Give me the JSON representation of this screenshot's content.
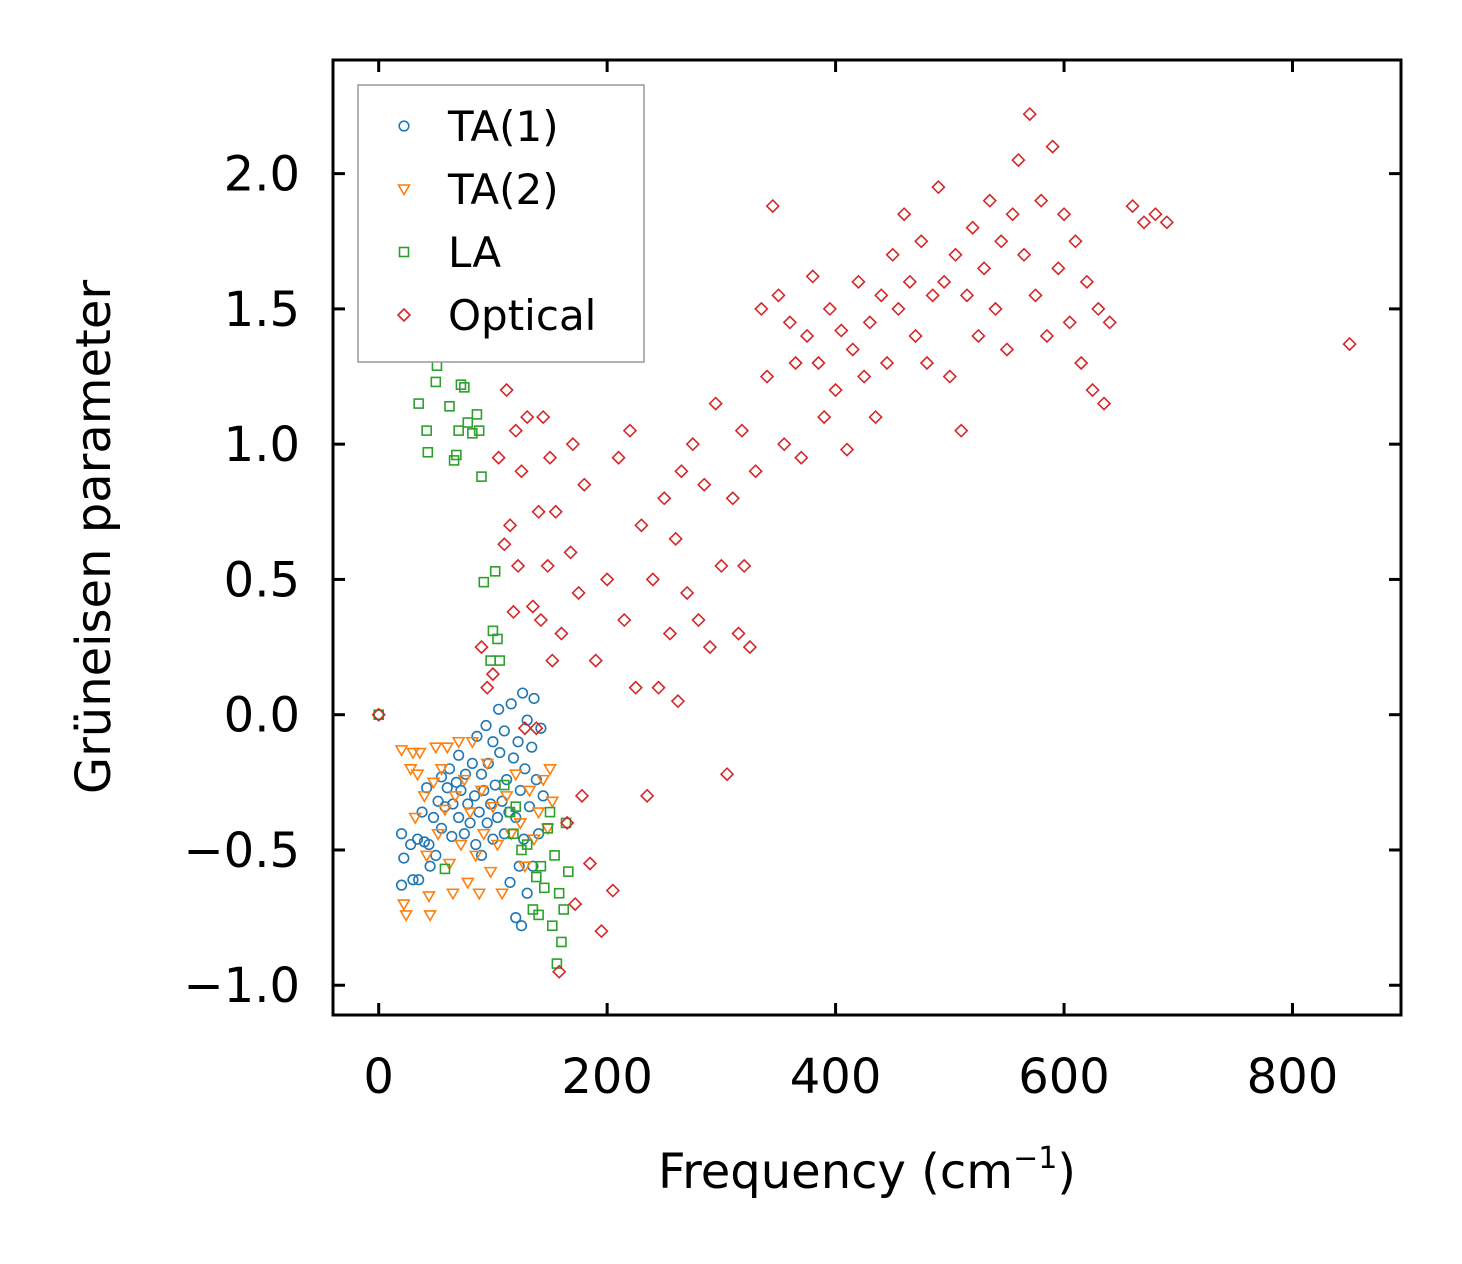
{
  "chart_data": {
    "type": "scatter",
    "title": "",
    "xlabel": "Frequency (cm",
    "xlabel_sup": "−1",
    "xlabel_close": ")",
    "ylabel": "Grüneisen parameter",
    "xlim": [
      -40,
      895
    ],
    "ylim": [
      -1.11,
      2.42
    ],
    "xticks": [
      0,
      200,
      400,
      600,
      800
    ],
    "xtick_labels": [
      "0",
      "200",
      "400",
      "600",
      "800"
    ],
    "yticks": [
      -1.0,
      -0.5,
      0.0,
      0.5,
      1.0,
      1.5,
      2.0
    ],
    "ytick_labels": [
      "−1.0",
      "−0.5",
      "0.0",
      "0.5",
      "1.0",
      "1.5",
      "2.0"
    ],
    "grid": false,
    "legend_position": "top-left",
    "series": [
      {
        "name": "TA(1)",
        "marker": "circle",
        "color": "#1f77b4",
        "points": [
          [
            0,
            0
          ],
          [
            20,
            -0.44
          ],
          [
            22,
            -0.53
          ],
          [
            20,
            -0.63
          ],
          [
            28,
            -0.48
          ],
          [
            30,
            -0.61
          ],
          [
            34,
            -0.46
          ],
          [
            35,
            -0.61
          ],
          [
            38,
            -0.36
          ],
          [
            40,
            -0.47
          ],
          [
            42,
            -0.27
          ],
          [
            44,
            -0.48
          ],
          [
            45,
            -0.56
          ],
          [
            48,
            -0.38
          ],
          [
            50,
            -0.52
          ],
          [
            52,
            -0.32
          ],
          [
            55,
            -0.23
          ],
          [
            55,
            -0.42
          ],
          [
            58,
            -0.34
          ],
          [
            60,
            -0.27
          ],
          [
            62,
            -0.2
          ],
          [
            64,
            -0.45
          ],
          [
            65,
            -0.33
          ],
          [
            68,
            -0.25
          ],
          [
            70,
            -0.38
          ],
          [
            70,
            -0.15
          ],
          [
            72,
            -0.28
          ],
          [
            75,
            -0.44
          ],
          [
            76,
            -0.22
          ],
          [
            78,
            -0.33
          ],
          [
            80,
            -0.4
          ],
          [
            82,
            -0.18
          ],
          [
            84,
            -0.3
          ],
          [
            85,
            -0.48
          ],
          [
            86,
            -0.08
          ],
          [
            88,
            -0.36
          ],
          [
            90,
            -0.22
          ],
          [
            90,
            -0.52
          ],
          [
            92,
            -0.28
          ],
          [
            94,
            -0.04
          ],
          [
            95,
            -0.4
          ],
          [
            96,
            -0.18
          ],
          [
            98,
            -0.33
          ],
          [
            100,
            -0.1
          ],
          [
            100,
            -0.46
          ],
          [
            102,
            -0.26
          ],
          [
            104,
            -0.38
          ],
          [
            105,
            0.02
          ],
          [
            106,
            -0.14
          ],
          [
            108,
            -0.32
          ],
          [
            110,
            -0.44
          ],
          [
            110,
            -0.06
          ],
          [
            112,
            -0.24
          ],
          [
            114,
            -0.36
          ],
          [
            115,
            -0.62
          ],
          [
            116,
            0.04
          ],
          [
            118,
            -0.16
          ],
          [
            120,
            -0.38
          ],
          [
            120,
            -0.75
          ],
          [
            122,
            -0.1
          ],
          [
            123,
            -0.56
          ],
          [
            124,
            -0.28
          ],
          [
            125,
            -0.78
          ],
          [
            126,
            0.08
          ],
          [
            127,
            -0.46
          ],
          [
            128,
            -0.2
          ],
          [
            130,
            -0.66
          ],
          [
            130,
            -0.02
          ],
          [
            132,
            -0.34
          ],
          [
            134,
            -0.12
          ],
          [
            135,
            -0.56
          ],
          [
            136,
            0.06
          ],
          [
            138,
            -0.24
          ],
          [
            140,
            -0.44
          ],
          [
            142,
            -0.05
          ],
          [
            144,
            -0.3
          ]
        ]
      },
      {
        "name": "TA(2)",
        "marker": "triangle",
        "color": "#ff7f0e",
        "points": [
          [
            20,
            -0.13
          ],
          [
            22,
            -0.7
          ],
          [
            24,
            -0.74
          ],
          [
            28,
            -0.2
          ],
          [
            30,
            -0.14
          ],
          [
            32,
            -0.38
          ],
          [
            34,
            -0.22
          ],
          [
            36,
            -0.14
          ],
          [
            40,
            -0.3
          ],
          [
            42,
            -0.52
          ],
          [
            44,
            -0.67
          ],
          [
            45,
            -0.74
          ],
          [
            48,
            -0.25
          ],
          [
            50,
            -0.12
          ],
          [
            52,
            -0.44
          ],
          [
            55,
            -0.2
          ],
          [
            58,
            -0.35
          ],
          [
            60,
            -0.12
          ],
          [
            62,
            -0.55
          ],
          [
            65,
            -0.66
          ],
          [
            67,
            -0.3
          ],
          [
            70,
            -0.1
          ],
          [
            72,
            -0.48
          ],
          [
            75,
            -0.24
          ],
          [
            78,
            -0.62
          ],
          [
            80,
            -0.36
          ],
          [
            82,
            -0.1
          ],
          [
            85,
            -0.52
          ],
          [
            88,
            -0.66
          ],
          [
            90,
            -0.28
          ],
          [
            92,
            -0.44
          ],
          [
            95,
            -0.18
          ],
          [
            98,
            -0.58
          ],
          [
            100,
            -0.34
          ],
          [
            104,
            -0.48
          ],
          [
            108,
            -0.66
          ],
          [
            112,
            -0.3
          ],
          [
            116,
            -0.44
          ],
          [
            120,
            -0.22
          ],
          [
            124,
            -0.4
          ],
          [
            128,
            -0.56
          ],
          [
            132,
            -0.28
          ],
          [
            136,
            -0.46
          ],
          [
            140,
            -0.36
          ],
          [
            144,
            -0.24
          ],
          [
            148,
            -0.42
          ],
          [
            150,
            -0.2
          ],
          [
            152,
            -0.32
          ]
        ]
      },
      {
        "name": "LA",
        "marker": "square",
        "color": "#2ca02c",
        "points": [
          [
            0,
            0
          ],
          [
            35,
            1.15
          ],
          [
            42,
            1.05
          ],
          [
            43,
            0.97
          ],
          [
            50,
            1.23
          ],
          [
            51,
            1.29
          ],
          [
            58,
            -0.57
          ],
          [
            62,
            1.14
          ],
          [
            66,
            0.94
          ],
          [
            68,
            0.96
          ],
          [
            70,
            1.05
          ],
          [
            72,
            1.22
          ],
          [
            75,
            1.21
          ],
          [
            78,
            1.08
          ],
          [
            82,
            1.04
          ],
          [
            86,
            1.11
          ],
          [
            88,
            1.05
          ],
          [
            90,
            0.88
          ],
          [
            92,
            0.49
          ],
          [
            98,
            0.2
          ],
          [
            100,
            0.31
          ],
          [
            102,
            0.53
          ],
          [
            104,
            0.28
          ],
          [
            106,
            0.2
          ],
          [
            110,
            -0.26
          ],
          [
            115,
            -0.36
          ],
          [
            118,
            -0.44
          ],
          [
            120,
            -0.34
          ],
          [
            125,
            -0.5
          ],
          [
            130,
            -0.48
          ],
          [
            135,
            -0.72
          ],
          [
            138,
            -0.6
          ],
          [
            140,
            -0.74
          ],
          [
            142,
            -0.56
          ],
          [
            145,
            -0.64
          ],
          [
            148,
            -0.42
          ],
          [
            150,
            -0.36
          ],
          [
            152,
            -0.78
          ],
          [
            154,
            -0.52
          ],
          [
            156,
            -0.92
          ],
          [
            158,
            -0.66
          ],
          [
            160,
            -0.84
          ],
          [
            162,
            -0.72
          ],
          [
            164,
            -0.4
          ],
          [
            166,
            -0.58
          ]
        ]
      },
      {
        "name": "Optical",
        "marker": "diamond",
        "color": "#d62728",
        "points": [
          [
            0,
            0
          ],
          [
            850,
            1.37
          ],
          [
            90,
            0.25
          ],
          [
            95,
            0.1
          ],
          [
            100,
            0.15
          ],
          [
            105,
            0.95
          ],
          [
            110,
            0.63
          ],
          [
            112,
            1.2
          ],
          [
            115,
            0.7
          ],
          [
            118,
            0.38
          ],
          [
            120,
            1.05
          ],
          [
            122,
            0.55
          ],
          [
            125,
            0.9
          ],
          [
            128,
            -0.05
          ],
          [
            130,
            1.1
          ],
          [
            135,
            0.4
          ],
          [
            138,
            -0.05
          ],
          [
            140,
            0.75
          ],
          [
            142,
            0.35
          ],
          [
            144,
            1.1
          ],
          [
            148,
            0.55
          ],
          [
            150,
            0.95
          ],
          [
            152,
            0.2
          ],
          [
            155,
            0.75
          ],
          [
            158,
            -0.95
          ],
          [
            160,
            0.3
          ],
          [
            165,
            -0.4
          ],
          [
            168,
            0.6
          ],
          [
            170,
            1.0
          ],
          [
            172,
            -0.7
          ],
          [
            175,
            0.45
          ],
          [
            178,
            -0.3
          ],
          [
            180,
            0.85
          ],
          [
            185,
            -0.55
          ],
          [
            190,
            0.2
          ],
          [
            195,
            -0.8
          ],
          [
            200,
            0.5
          ],
          [
            205,
            -0.65
          ],
          [
            210,
            0.95
          ],
          [
            215,
            0.35
          ],
          [
            220,
            1.05
          ],
          [
            225,
            0.1
          ],
          [
            230,
            0.7
          ],
          [
            235,
            -0.3
          ],
          [
            240,
            0.5
          ],
          [
            245,
            0.1
          ],
          [
            250,
            0.8
          ],
          [
            255,
            0.3
          ],
          [
            260,
            0.65
          ],
          [
            262,
            0.05
          ],
          [
            265,
            0.9
          ],
          [
            270,
            0.45
          ],
          [
            275,
            1.0
          ],
          [
            280,
            0.35
          ],
          [
            285,
            0.85
          ],
          [
            290,
            0.25
          ],
          [
            295,
            1.15
          ],
          [
            300,
            0.55
          ],
          [
            305,
            -0.22
          ],
          [
            310,
            0.8
          ],
          [
            315,
            0.3
          ],
          [
            318,
            1.05
          ],
          [
            320,
            0.55
          ],
          [
            325,
            0.25
          ],
          [
            330,
            0.9
          ],
          [
            335,
            1.5
          ],
          [
            340,
            1.25
          ],
          [
            345,
            1.88
          ],
          [
            350,
            1.55
          ],
          [
            355,
            1.0
          ],
          [
            360,
            1.45
          ],
          [
            365,
            1.3
          ],
          [
            370,
            0.95
          ],
          [
            375,
            1.4
          ],
          [
            380,
            1.62
          ],
          [
            385,
            1.3
          ],
          [
            390,
            1.1
          ],
          [
            395,
            1.5
          ],
          [
            400,
            1.2
          ],
          [
            405,
            1.42
          ],
          [
            410,
            0.98
          ],
          [
            415,
            1.35
          ],
          [
            420,
            1.6
          ],
          [
            425,
            1.25
          ],
          [
            430,
            1.45
          ],
          [
            435,
            1.1
          ],
          [
            440,
            1.55
          ],
          [
            445,
            1.3
          ],
          [
            450,
            1.7
          ],
          [
            455,
            1.5
          ],
          [
            460,
            1.85
          ],
          [
            465,
            1.6
          ],
          [
            470,
            1.4
          ],
          [
            475,
            1.75
          ],
          [
            480,
            1.3
          ],
          [
            485,
            1.55
          ],
          [
            490,
            1.95
          ],
          [
            495,
            1.6
          ],
          [
            500,
            1.25
          ],
          [
            505,
            1.7
          ],
          [
            510,
            1.05
          ],
          [
            515,
            1.55
          ],
          [
            520,
            1.8
          ],
          [
            525,
            1.4
          ],
          [
            530,
            1.65
          ],
          [
            535,
            1.9
          ],
          [
            540,
            1.5
          ],
          [
            545,
            1.75
          ],
          [
            550,
            1.35
          ],
          [
            555,
            1.85
          ],
          [
            560,
            2.05
          ],
          [
            565,
            1.7
          ],
          [
            570,
            2.22
          ],
          [
            575,
            1.55
          ],
          [
            580,
            1.9
          ],
          [
            585,
            1.4
          ],
          [
            590,
            2.1
          ],
          [
            595,
            1.65
          ],
          [
            600,
            1.85
          ],
          [
            605,
            1.45
          ],
          [
            610,
            1.75
          ],
          [
            615,
            1.3
          ],
          [
            620,
            1.6
          ],
          [
            625,
            1.2
          ],
          [
            630,
            1.5
          ],
          [
            635,
            1.15
          ],
          [
            640,
            1.45
          ],
          [
            660,
            1.88
          ],
          [
            670,
            1.82
          ],
          [
            680,
            1.85
          ],
          [
            690,
            1.82
          ]
        ]
      }
    ]
  }
}
